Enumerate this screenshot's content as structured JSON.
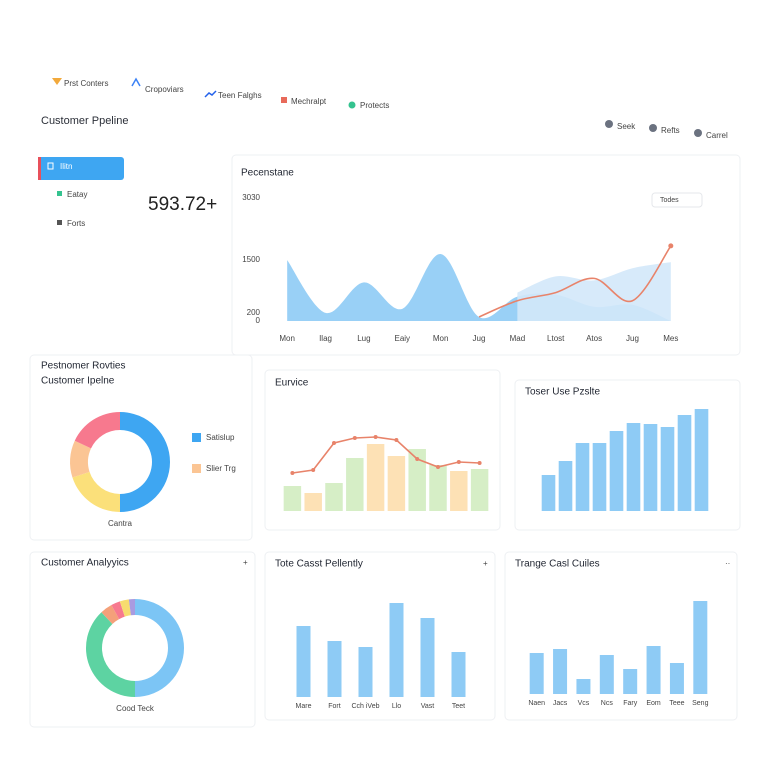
{
  "nav": {
    "tabs": [
      "Prst Conters",
      "Cropoviars",
      "Teen Falghs",
      "Mechralpt",
      "Protects"
    ]
  },
  "header": {
    "title": "Customer Ppeline",
    "users": [
      "Seek",
      "Refts",
      "Carrel"
    ]
  },
  "sidebar": {
    "items": [
      "Ilitn",
      "Eatay",
      "Forts"
    ]
  },
  "kpi": {
    "value": "593.72+"
  },
  "chart_data": [
    {
      "type": "area",
      "title": "Pecenstane",
      "control": "Todes",
      "categories": [
        "Mon",
        "Ilag",
        "Lug",
        "Eaiy",
        "Mon",
        "Jug",
        "Mad",
        "Ltost",
        "Atos",
        "Jug",
        "Mes"
      ],
      "ylim": [
        0,
        3030
      ],
      "yticks": [
        3030,
        1500,
        200,
        0
      ],
      "series": [
        {
          "color": "#8ecbf5",
          "values": [
            1500,
            200,
            950,
            300,
            1650,
            100,
            600,
            650,
            350,
            400,
            0
          ]
        },
        {
          "color": "#d3e8f9",
          "values": [
            null,
            null,
            null,
            null,
            null,
            null,
            700,
            1100,
            1000,
            1300,
            1450
          ]
        },
        {
          "color": "#e8836a",
          "kind": "line",
          "values": [
            null,
            null,
            null,
            null,
            null,
            100,
            500,
            700,
            1050,
            500,
            1850
          ]
        }
      ]
    },
    {
      "type": "pie",
      "donut": true,
      "title": "Pestnomer Rovties",
      "subtitle": "Customer Ipelne",
      "caption": "Cantra",
      "categories": [
        "Satislup",
        null,
        "Slier Trg",
        null
      ],
      "values": [
        50,
        20,
        12,
        18
      ],
      "colors": [
        "#3ea6f2",
        "#fbe07a",
        "#fbc594",
        "#f7798e"
      ]
    },
    {
      "type": "combo",
      "title": "Eurvice",
      "series": [
        {
          "values": [
            25,
            18,
            28,
            53,
            67,
            55,
            62,
            46,
            40,
            42
          ],
          "colors": [
            "#d6eec6",
            "#fde1b5",
            "#d6eec6",
            "#d6eec6",
            "#fde1b5",
            "#fde1b5",
            "#d6eec6",
            "#d6eec6",
            "#fde1b5",
            "#d6eec6"
          ]
        },
        {
          "color": "#e8836a",
          "values": [
            38,
            41,
            68,
            73,
            74,
            71,
            52,
            44,
            49,
            48
          ]
        }
      ]
    },
    {
      "type": "bar",
      "title": "Toser Use Pzslte",
      "color": "#8ecbf5",
      "values": [
        36,
        50,
        68,
        68,
        80,
        88,
        87,
        84,
        96,
        102
      ]
    },
    {
      "type": "pie",
      "donut": true,
      "title": "Customer Analyyics",
      "menu": "+",
      "caption": "Cood Teck",
      "categories": [
        null,
        null,
        null,
        null,
        null,
        null
      ],
      "values": [
        50,
        38,
        4,
        3,
        3,
        2
      ],
      "colors": [
        "#7cc5f5",
        "#5dd3a2",
        "#f4a07a",
        "#f7798e",
        "#f7dc6f",
        "#a99be0"
      ]
    },
    {
      "type": "bar",
      "title": "Tote Casst Pellently",
      "menu": "+",
      "color": "#8ecbf5",
      "categories": [
        "Mare",
        "Fort",
        "Cch iVeb",
        "Llo",
        "Vast",
        "Teet"
      ],
      "values": [
        71,
        56,
        50,
        94,
        79,
        45
      ]
    },
    {
      "type": "bar",
      "title": "Trange Casl Cuiles",
      "menu": "··",
      "color": "#8ecbf5",
      "categories": [
        "Naen",
        "Jacs",
        "Vcs",
        "Ncs",
        "Fary",
        "Eom",
        "Teee",
        "Seng"
      ],
      "values": [
        41,
        45,
        15,
        39,
        25,
        48,
        31,
        93
      ]
    }
  ]
}
